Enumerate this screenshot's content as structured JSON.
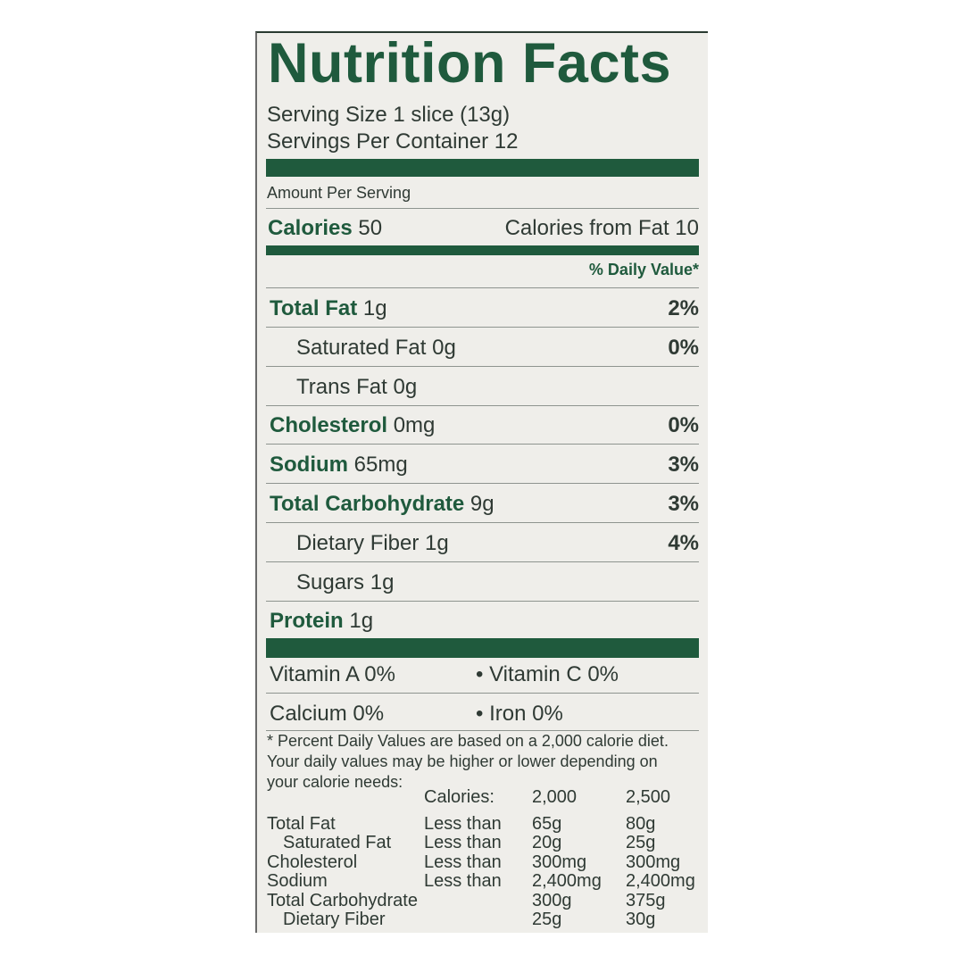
{
  "title": "Nutrition Facts",
  "serving_size": "Serving Size 1 slice (13g)",
  "servings_per_container": "Servings Per Container 12",
  "amount_per_serving": "Amount Per Serving",
  "calories": {
    "label": "Calories",
    "value": "50",
    "from_fat": "Calories from Fat 10"
  },
  "daily_value_header": "% Daily Value*",
  "nutrients": [
    {
      "name": "Total Fat",
      "amount": "1g",
      "dv": "2%",
      "bold": true
    },
    {
      "name": "Saturated Fat",
      "amount": "0g",
      "dv": "0%",
      "bold": false
    },
    {
      "name": "Trans Fat",
      "amount": "0g",
      "dv": "",
      "bold": false
    },
    {
      "name": "Cholesterol",
      "amount": "0mg",
      "dv": "0%",
      "bold": true
    },
    {
      "name": "Sodium",
      "amount": "65mg",
      "dv": "3%",
      "bold": true
    },
    {
      "name": "Total Carbohydrate",
      "amount": "9g",
      "dv": "3%",
      "bold": true
    },
    {
      "name": "Dietary Fiber",
      "amount": "1g",
      "dv": "4%",
      "bold": false
    },
    {
      "name": "Sugars",
      "amount": "1g",
      "dv": "",
      "bold": false
    },
    {
      "name": "Protein",
      "amount": "1g",
      "dv": "",
      "bold": true
    }
  ],
  "vitamins": [
    {
      "left": "Vitamin A 0%",
      "right": "• Vitamin C 0%"
    },
    {
      "left": "Calcium 0%",
      "right": "• Iron 0%"
    }
  ],
  "footnote": [
    "* Percent Daily Values are based on a 2,000 calorie diet.",
    "Your daily values may be higher or lower depending on",
    "your calorie needs:"
  ],
  "dv_table": {
    "header": [
      "",
      "Calories:",
      "2,000",
      "2,500"
    ],
    "rows": [
      [
        "Total Fat",
        "Less than",
        "65g",
        "80g"
      ],
      [
        "Saturated Fat",
        "Less than",
        "20g",
        "25g"
      ],
      [
        "Cholesterol",
        "Less than",
        "300mg",
        "300mg"
      ],
      [
        "Sodium",
        "Less than",
        "2,400mg",
        "2,400mg"
      ],
      [
        "Total Carbohydrate",
        "",
        "300g",
        "375g"
      ],
      [
        "Dietary Fiber",
        "",
        "25g",
        "30g"
      ]
    ]
  },
  "colors": {
    "green": "#1f5a3d",
    "text": "#2f3a34",
    "background": "#efeeea"
  }
}
